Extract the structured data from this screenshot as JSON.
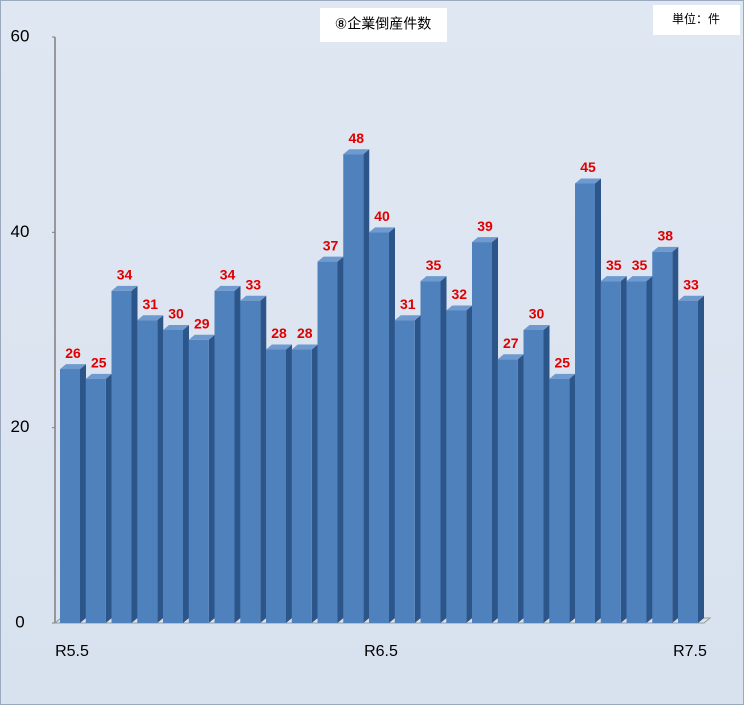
{
  "chart_data": {
    "type": "bar",
    "title": "⑧企業倒産件数",
    "unit": "単位：件",
    "categories": [
      "R5.5",
      null,
      null,
      null,
      null,
      null,
      null,
      null,
      null,
      null,
      null,
      null,
      "R6.5",
      null,
      null,
      null,
      null,
      null,
      null,
      null,
      null,
      null,
      null,
      null,
      "R7.5"
    ],
    "values": [
      26,
      25,
      34,
      31,
      30,
      29,
      34,
      33,
      28,
      28,
      37,
      48,
      40,
      31,
      35,
      32,
      39,
      27,
      30,
      25,
      45,
      35,
      35,
      38,
      33
    ],
    "color": "#4f81bd",
    "label_color": "#e00000",
    "ylim": [
      0,
      60
    ],
    "yticks": [
      0,
      20,
      40,
      60
    ],
    "grid": false
  }
}
